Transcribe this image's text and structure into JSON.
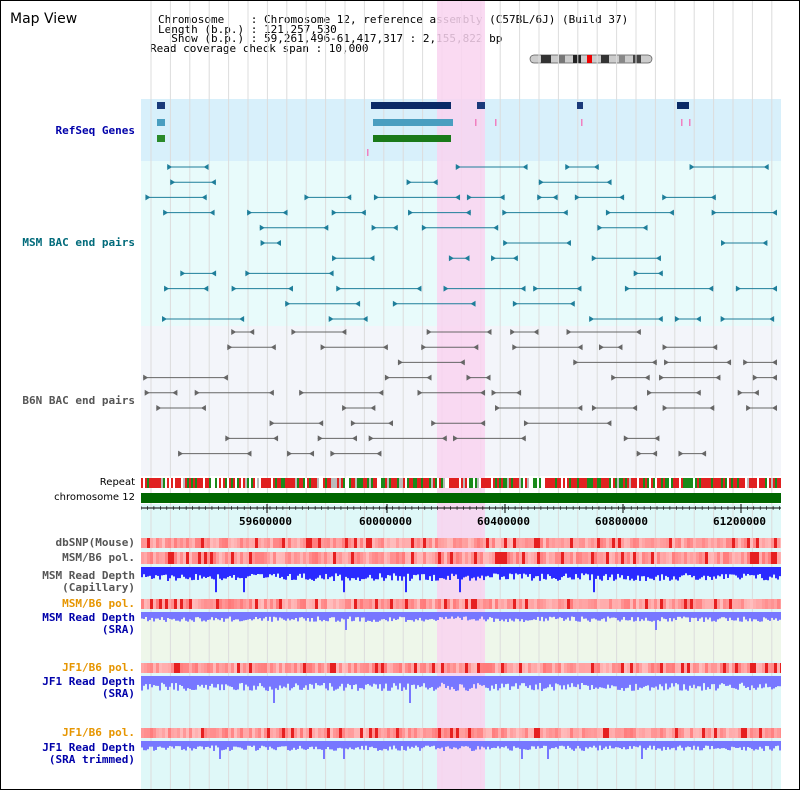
{
  "title": "Map View",
  "info": {
    "chromosome_line": "Chromosome    : Chromosome 12, reference assembly (C57BL/6J) (Build 37)",
    "length_line": "Length (b.p.) : 121,257,530",
    "show_line": "  Show (b.p.) : 59,261,496-61,417,317 : 2,155,822 bp",
    "coverage_line": "Read coverage check span : 10,000"
  },
  "tracks": {
    "refseq": "RefSeq Genes",
    "msm_bac": "MSM BAC end pairs",
    "b6n_bac": "B6N BAC end pairs",
    "repeat": "Repeat",
    "chromosome": "chromosome 12",
    "dbsnp": "dbSNP(Mouse)",
    "msm_b6_pol": "MSM/B6 pol.",
    "msm_read_depth_cap": "MSM Read Depth\n(Capillary)",
    "msm_b6_pol2": "MSM/B6 pol.",
    "msm_read_depth_sra": "MSM Read Depth\n(SRA)",
    "jf1_b6_pol": "JF1/B6 pol.",
    "jf1_read_depth_sra": "JF1 Read Depth\n(SRA)",
    "jf1_b6_pol2": "JF1/B6 pol.",
    "jf1_read_depth_trim": "JF1 Read Depth\n(SRA trimmed)"
  },
  "axis": {
    "ticks": [
      "59600000",
      "60000000",
      "60400000",
      "60800000",
      "61200000"
    ]
  },
  "colors": {
    "highlight": "#f9d4f0",
    "refseq_bg": "#d8f0fb",
    "msm_bg": "#e8fbfb",
    "chromosome_bar": "#006600",
    "read_depth_blue": "#2a2aff",
    "sra_blue": "#7777ff"
  }
}
